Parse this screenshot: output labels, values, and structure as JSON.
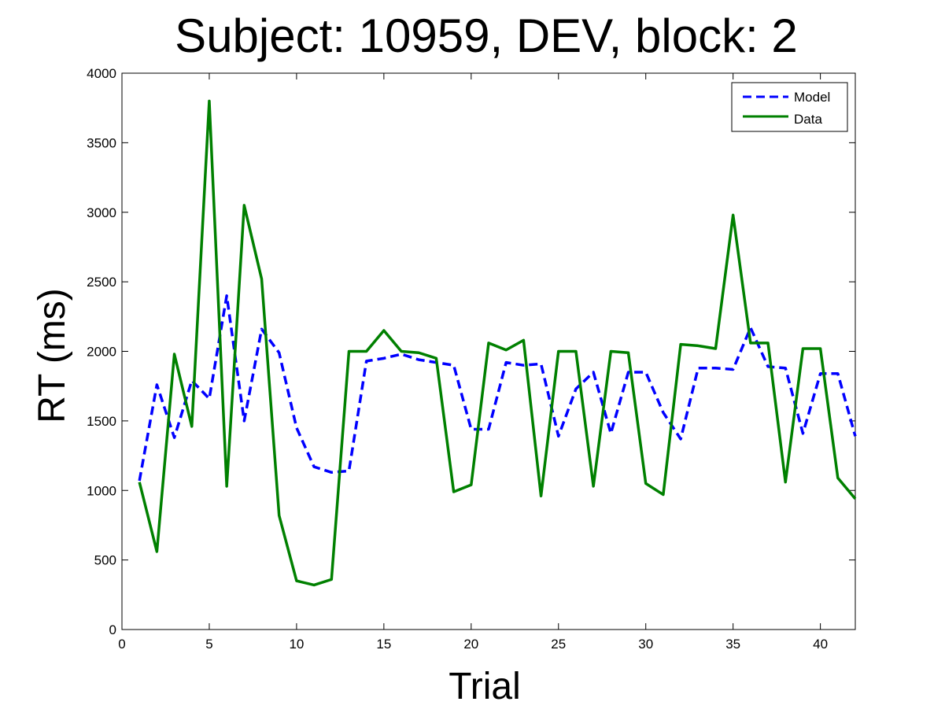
{
  "chart_data": {
    "type": "line",
    "title": "Subject: 10959, DEV, block: 2",
    "xlabel": "Trial",
    "ylabel": "RT (ms)",
    "xlim": [
      0,
      42
    ],
    "ylim": [
      0,
      4000
    ],
    "xticks": [
      0,
      5,
      10,
      15,
      20,
      25,
      30,
      35,
      40
    ],
    "yticks": [
      0,
      500,
      1000,
      1500,
      2000,
      2500,
      3000,
      3500,
      4000
    ],
    "grid": false,
    "legend_position": "top-right",
    "x": [
      1,
      2,
      3,
      4,
      5,
      6,
      7,
      8,
      9,
      10,
      11,
      12,
      13,
      14,
      15,
      16,
      17,
      18,
      19,
      20,
      21,
      22,
      23,
      24,
      25,
      26,
      27,
      28,
      29,
      30,
      31,
      32,
      33,
      34,
      35,
      36,
      37,
      38,
      39,
      40,
      41,
      42
    ],
    "series": [
      {
        "name": "Model",
        "color": "#0000ff",
        "style": "dashed",
        "values": [
          1070,
          1760,
          1380,
          1790,
          1660,
          2400,
          1500,
          2160,
          1990,
          1450,
          1170,
          1130,
          1140,
          1930,
          1950,
          1980,
          1940,
          1920,
          1900,
          1440,
          1440,
          1920,
          1900,
          1910,
          1390,
          1730,
          1850,
          1410,
          1850,
          1850,
          1560,
          1370,
          1880,
          1880,
          1870,
          2170,
          1890,
          1880,
          1410,
          1840,
          1840,
          1390
        ]
      },
      {
        "name": "Data",
        "color": "#008000",
        "style": "solid",
        "values": [
          1060,
          560,
          1980,
          1460,
          3800,
          1030,
          3050,
          2520,
          820,
          350,
          320,
          360,
          2000,
          2000,
          2150,
          2000,
          1990,
          1950,
          990,
          1040,
          2060,
          2010,
          2080,
          960,
          2000,
          2000,
          1030,
          2000,
          1990,
          1050,
          970,
          2050,
          2040,
          2020,
          2980,
          2060,
          2060,
          1060,
          2020,
          2020,
          1090,
          940
        ]
      }
    ]
  }
}
